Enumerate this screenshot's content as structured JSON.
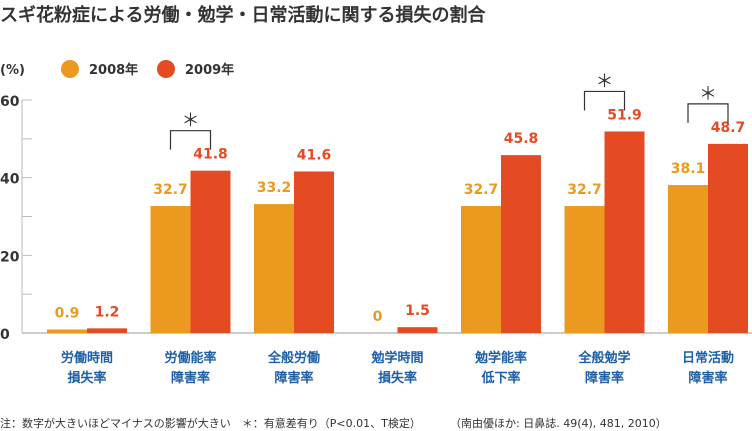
{
  "chart_data": {
    "type": "bar",
    "title": "スギ花粉症による労働・勉学・日常活動に関する損失の割合",
    "ylabel": "(%)",
    "ylim": [
      0,
      60
    ],
    "yticks": [
      "0",
      "20",
      "40",
      "60"
    ],
    "categories": [
      [
        "労働時間",
        "損失率"
      ],
      [
        "労働能率",
        "障害率"
      ],
      [
        "全般労働",
        "障害率"
      ],
      [
        "勉学時間",
        "損失率"
      ],
      [
        "勉学能率",
        "低下率"
      ],
      [
        "全般勉学",
        "障害率"
      ],
      [
        "日常活動",
        "障害率"
      ]
    ],
    "series": [
      {
        "name": "2008年",
        "color": "#EB9A1F",
        "values": [
          0.9,
          32.7,
          33.2,
          0,
          32.7,
          32.7,
          38.1
        ],
        "labels": [
          "0.9",
          "32.7",
          "33.2",
          "0",
          "32.7",
          "32.7",
          "38.1"
        ]
      },
      {
        "name": "2009年",
        "color": "#E54B22",
        "values": [
          1.2,
          41.8,
          41.6,
          1.5,
          45.8,
          51.9,
          48.7
        ],
        "labels": [
          "1.2",
          "41.8",
          "41.6",
          "1.5",
          "45.8",
          "51.9",
          "48.7"
        ]
      }
    ],
    "significant": [
      false,
      true,
      false,
      false,
      false,
      true,
      true
    ],
    "significance_mark": "＊",
    "legend": "top-left",
    "label_color": "#1E5FA8",
    "notes": {
      "left": "注：数字が大きいほどマイナスの影響が大きい　＊：有意差有り（P<0.01、T検定）",
      "right": "（南由優ほか: 日鼻誌. 49(4), 481, 2010）"
    }
  }
}
